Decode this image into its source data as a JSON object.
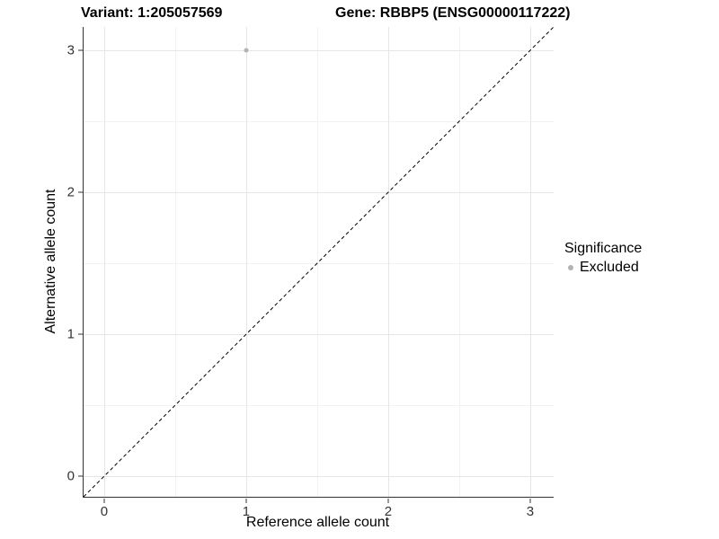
{
  "chart_data": {
    "type": "scatter",
    "titles": [
      "Variant: 1:205057569",
      "Gene: RBBP5 (ENSG00000117222)"
    ],
    "xlabel": "Reference allele count",
    "ylabel": "Alternative allele count",
    "xlim": [
      -0.145,
      3.165
    ],
    "ylim": [
      -0.145,
      3.165
    ],
    "x_major_ticks": [
      0,
      1,
      2,
      3
    ],
    "x_minor_ticks": [
      0.5,
      1.5,
      2.5
    ],
    "y_major_ticks": [
      0,
      1,
      2,
      3
    ],
    "y_minor_ticks": [
      0.5,
      1.5,
      2.5
    ],
    "x_tick_labels": [
      "0",
      "1",
      "2",
      "3"
    ],
    "y_tick_labels": [
      "0",
      "1",
      "2",
      "3"
    ],
    "grid": "major and minor gridlines, light grey on white panel",
    "series": [
      {
        "name": "Excluded",
        "marker": "circle",
        "color": "#b3b3b3",
        "points": [
          {
            "x": 1,
            "y": 3
          }
        ]
      }
    ],
    "reference_line": {
      "kind": "identity y=x",
      "style": "dashed",
      "color": "#000000"
    },
    "legend": {
      "title": "Significance",
      "position": "right-middle",
      "entries": [
        {
          "label": "Excluded",
          "color": "#b3b3b3"
        }
      ]
    }
  },
  "colors": {
    "axis_line": "#333333",
    "tick_text": "#333333",
    "grid_major": "#e6e6e6",
    "grid_minor": "#f2f2f2",
    "point": "#b3b3b3",
    "title_text": "#000000"
  }
}
